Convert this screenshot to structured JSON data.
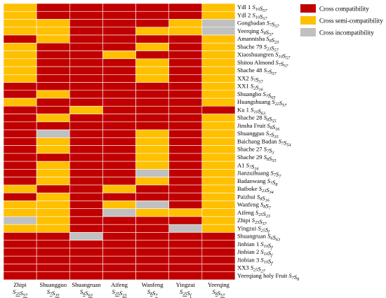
{
  "chart_data": {
    "type": "heatmap",
    "columns": [
      "Zhipi S<sub>25</sub>S<sub>57</sub>",
      "Shuangguo S<sub>7</sub>S<sub>35</sub>",
      "Shuangruan S<sub>6</sub>S<sub>63</sub>",
      "Aifeng S<sub>25</sub>S<sub>23</sub>",
      "Wanfeng S<sub>8</sub>S<sub>7</sub>",
      "Yingzui S<sub>25</sub>S<sub>f</sub>",
      "Yeerqing S<sub>8</sub>S<sub>57</sub>"
    ],
    "columns_plain": [
      {
        "name": "Zhipi",
        "allele": "S25S57"
      },
      {
        "name": "Shuangguo",
        "allele": "S7S35"
      },
      {
        "name": "Shuangruan",
        "allele": "S6S63"
      },
      {
        "name": "Aifeng",
        "allele": "S25S23"
      },
      {
        "name": "Wanfeng",
        "allele": "S8S7"
      },
      {
        "name": "Yingzui",
        "allele": "S25Sf"
      },
      {
        "name": "Yeerqing",
        "allele": "S8S57"
      }
    ],
    "rows": [
      {
        "name": "Ydl 1",
        "allele": "S10S57"
      },
      {
        "name": "Ydl 2",
        "allele": "S10S57"
      },
      {
        "name": "Gongbadan",
        "allele": "S7S57"
      },
      {
        "name": "Yeerqing",
        "allele": "S8S57"
      },
      {
        "name": "Amannisha",
        "allele": "S8S23"
      },
      {
        "name": "Shache 79",
        "allele": "S23S57"
      },
      {
        "name": "Xiaoshuangren",
        "allele": "S10S57"
      },
      {
        "name": "Shitou Almond",
        "allele": "S7S57"
      },
      {
        "name": "Shache 48",
        "allele": "S7S57"
      },
      {
        "name": "XX2",
        "allele": "S7S57"
      },
      {
        "name": "XX1",
        "allele": "S2S16"
      },
      {
        "name": "Shuangbo",
        "allele": "S7S65"
      },
      {
        "name": "Huangshuang",
        "allele": "S22S57"
      },
      {
        "name": "Ku 1",
        "allele": "S10S63"
      },
      {
        "name": "Shache 28",
        "allele": "S8S55"
      },
      {
        "name": "Jinsha Fruit",
        "allele": "S8S16"
      },
      {
        "name": "Shuangguo",
        "allele": "S7S35"
      },
      {
        "name": "Baichang Badan",
        "allele": "S7S54"
      },
      {
        "name": "Shache 27",
        "allele": "S7S3"
      },
      {
        "name": "Shache 29",
        "allele": "S8S55"
      },
      {
        "name": "A1",
        "allele": "S7S16"
      },
      {
        "name": "Jianzuihuang",
        "allele": "S7S7"
      },
      {
        "name": "Badanwang",
        "allele": "S7S8"
      },
      {
        "name": "Baiboke",
        "allele": "S23S34"
      },
      {
        "name": "Paizhui",
        "allele": "S8S16"
      },
      {
        "name": "Wanfeng",
        "allele": "S8S7"
      },
      {
        "name": "Aifeng",
        "allele": "S25S23"
      },
      {
        "name": "Zhipi",
        "allele": "S25S57"
      },
      {
        "name": "Yingzui",
        "allele": "S25Sf"
      },
      {
        "name": "Shuangruan",
        "allele": "S6S63"
      },
      {
        "name": "Jinbian 1",
        "allele": "S10Sf′"
      },
      {
        "name": "Jinbian 2",
        "allele": "S10Sf"
      },
      {
        "name": "Jinbian 3",
        "allele": "S10Sf′"
      },
      {
        "name": "XX3",
        "allele": "S25S27"
      },
      {
        "name": "Yeerqiang holy Fruit",
        "allele": "S7S8"
      }
    ],
    "categories": {
      "C": "Cross compatibility",
      "S": "Cross semi-compatibility",
      "I": "Cross incompatibility"
    },
    "colors": {
      "C": "#c00000",
      "S": "#ffc000",
      "I": "#c0c0c0"
    },
    "matrix": [
      "SCCCCCS",
      "SCCCCCS",
      "SSCCCSI",
      "SSCCSSI",
      "CSCCCCS",
      "SCCCSCS",
      "SCCSCCS",
      "SCCCSCS",
      "SCCCSCS",
      "SCCCSCS",
      "CCCCCCS",
      "CSCCCCS",
      "SCCCCCS",
      "CCSCCCC",
      "CSCCCCS",
      "CCCCCCS",
      "CICCSCS",
      "CSCCSCS",
      "CSCCSCS",
      "CCCCSCS",
      "CSCCSCS",
      "CSCCICS",
      "CSCCSCS",
      "SCCSCCS",
      "CSCCCCS",
      "SSCSICS",
      "SSCISSS",
      "ISCCCCS",
      "SSCCCIS",
      "CCICCCC",
      "CCCCCCC",
      "CCCCCCC",
      "CCCCCCC",
      "CCCCCCC",
      "CCCCCCC"
    ],
    "legend_position": "top-right"
  }
}
